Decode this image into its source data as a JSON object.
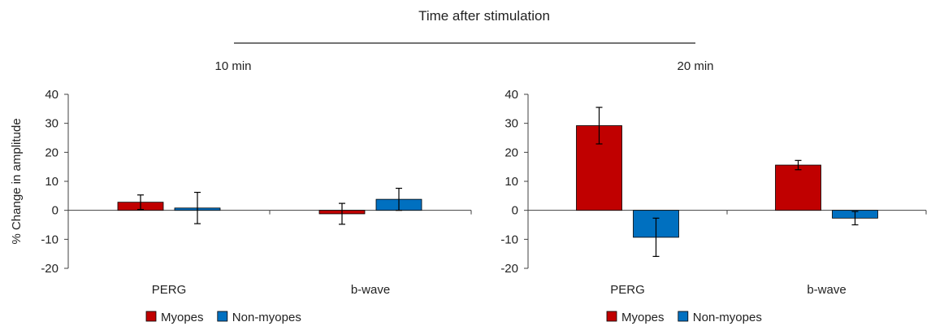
{
  "figure": {
    "super_title": "Time after stimulation",
    "ylabel": "% Change in amplitude"
  },
  "colors": {
    "myopes": "#c00000",
    "non_myopes": "#0070c0",
    "axis": "#404040",
    "error": "#000000"
  },
  "chart_data": [
    {
      "type": "bar",
      "title": "10 min",
      "xlabel": "",
      "ylabel": "% Change in amplitude",
      "ylim": [
        -20,
        40
      ],
      "yticks": [
        -20,
        -10,
        0,
        10,
        20,
        30,
        40
      ],
      "categories": [
        "PERG",
        "b-wave"
      ],
      "grid": false,
      "legend_position": "bottom-left",
      "series": [
        {
          "name": "Myopes",
          "color_key": "myopes",
          "values": [
            2.8,
            -1.2
          ],
          "errors": [
            2.5,
            3.6
          ]
        },
        {
          "name": "Non-myopes",
          "color_key": "non_myopes",
          "values": [
            0.8,
            3.8
          ],
          "errors": [
            5.4,
            3.8
          ]
        }
      ]
    },
    {
      "type": "bar",
      "title": "20 min",
      "xlabel": "",
      "ylabel": "",
      "ylim": [
        -20,
        40
      ],
      "yticks": [
        -20,
        -10,
        0,
        10,
        20,
        30,
        40
      ],
      "categories": [
        "PERG",
        "b-wave"
      ],
      "grid": false,
      "legend_position": "bottom-left",
      "series": [
        {
          "name": "Myopes",
          "color_key": "myopes",
          "values": [
            29.2,
            15.6
          ],
          "errors": [
            6.3,
            1.6
          ]
        },
        {
          "name": "Non-myopes",
          "color_key": "non_myopes",
          "values": [
            -9.3,
            -2.7
          ],
          "errors": [
            6.6,
            2.3
          ]
        }
      ]
    }
  ]
}
